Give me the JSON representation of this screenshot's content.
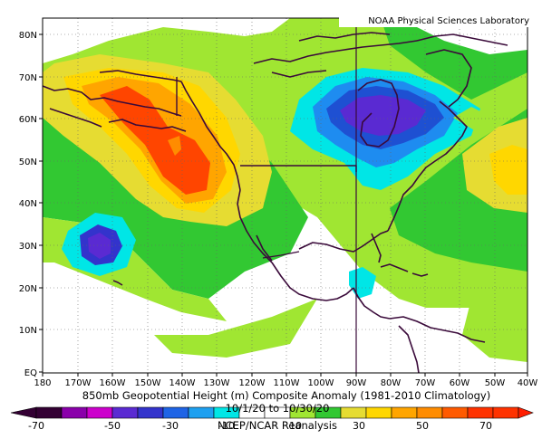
{
  "credit": "NOAA Physical Sciences Laboratory",
  "map": {
    "lat_labels": [
      "80N",
      "70N",
      "60N",
      "50N",
      "40N",
      "30N",
      "20N",
      "10N",
      "EQ"
    ],
    "lon_labels": [
      "180",
      "170W",
      "160W",
      "150W",
      "140W",
      "130W",
      "120W",
      "110W",
      "100W",
      "90W",
      "80W",
      "70W",
      "60W",
      "50W",
      "40W"
    ]
  },
  "caption": {
    "title": "850mb Geopotential Height (m) Composite Anomaly (1981-2010 Climatology)",
    "dates": "10/1/20 to 10/30/20",
    "source": "NCEP/NCAR Reanalysis"
  },
  "colorbar": {
    "labels": [
      "-70",
      "-50",
      "-30",
      "-10",
      "10",
      "30",
      "50",
      "70"
    ],
    "colors": [
      "#330033",
      "#8a00aa",
      "#cc00cc",
      "#5a2ad2",
      "#3333cc",
      "#1e64e6",
      "#00c8e6",
      "#ffffff",
      "#ffffff",
      "#a0e632",
      "#32c832",
      "#e6dc32",
      "#ffd700",
      "#ffa500",
      "#ff8c00",
      "#ff4500"
    ]
  },
  "colors": {
    "coast": "#3a0a3a",
    "grid": "#666666"
  }
}
